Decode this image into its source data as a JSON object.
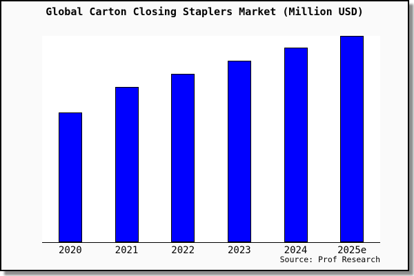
{
  "figure": {
    "title": "Global Carton Closing Staplers Market (Million USD)",
    "source": "Source: Prof Research"
  },
  "chart_data": {
    "type": "bar",
    "title": "Global Carton Closing Staplers Market (Million USD)",
    "xlabel": "",
    "ylabel": "",
    "categories": [
      "2020",
      "2021",
      "2022",
      "2023",
      "2024",
      "2025e"
    ],
    "values": [
      0.627,
      0.75,
      0.813,
      0.877,
      0.94,
      0.997
    ],
    "value_note": "Y axis is unlabeled (no ticks, no gridlines); values are bar heights as fraction of the plot height",
    "ylim": [
      0,
      1
    ],
    "grid": false,
    "legend": false,
    "bar_color": "#0000FF",
    "bar_border_color": "#000000",
    "axis_color": "#000000",
    "plot_background": "#FFFFFF",
    "figure_background": "#FAFAFA",
    "source_label": "Source: Prof Research"
  }
}
